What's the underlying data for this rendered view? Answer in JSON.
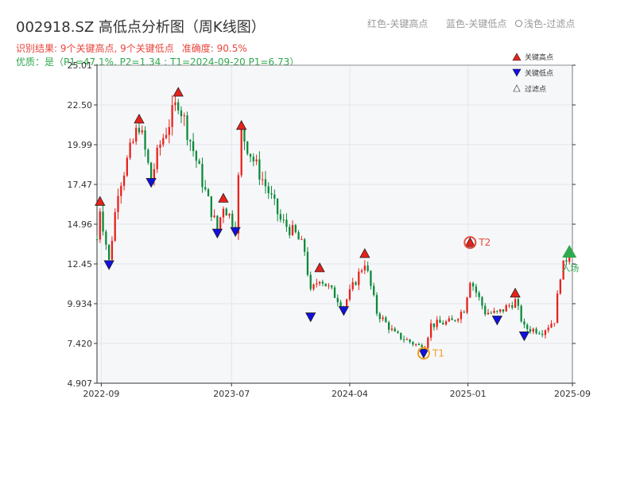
{
  "header": {
    "title": "002918.SZ 高低点分析图（周K线图）",
    "hint_red": "红色-关键高点",
    "hint_blue": "蓝色-关键低点",
    "hint_light": "浅色-过滤点",
    "result": "识别结果: 9个关键高点, 9个关键低点",
    "accuracy": "准确度: 90.5%",
    "quality": "优质：是（P1=47.1%, P2=1.34 ; T1=2024-09-20 P1=6.73）"
  },
  "chart_data": {
    "type": "candlestick",
    "y_ticks": [
      "25.01",
      "22.50",
      "19.99",
      "17.47",
      "14.96",
      "12.45",
      "9.934",
      "7.420",
      "4.907"
    ],
    "ylim": [
      4.907,
      25.01
    ],
    "x_ticks": [
      "2022-09",
      "2023-07",
      "2024-04",
      "2025-01",
      "2025-09"
    ],
    "xlim": [
      "2022-08-22",
      "2025-09-01"
    ],
    "grid": true,
    "legend": {
      "position": "top-right",
      "items": [
        "关键高点",
        "关键低点",
        "过滤点"
      ]
    },
    "colors": {
      "up": "#e8211b",
      "down": "#0a8a3a",
      "high": "#e8211b",
      "low": "#1010e0",
      "marker_T": "#f0a020",
      "marker_T2": "#e84a3c",
      "entry": "#2fa84f"
    },
    "series": [
      {
        "name": "关键高点",
        "points": [
          {
            "date": "2022-08-29",
            "value": 16.4
          },
          {
            "date": "2022-11-28",
            "value": 21.6
          },
          {
            "date": "2023-02-27",
            "value": 23.3
          },
          {
            "date": "2023-06-12",
            "value": 16.6
          },
          {
            "date": "2023-07-24",
            "value": 21.2
          },
          {
            "date": "2024-01-22",
            "value": 12.2
          },
          {
            "date": "2024-05-06",
            "value": 13.1
          },
          {
            "date": "2025-01-06",
            "value": 13.8
          },
          {
            "date": "2025-04-21",
            "value": 10.6
          }
        ]
      },
      {
        "name": "关键低点",
        "points": [
          {
            "date": "2022-09-19",
            "value": 12.4
          },
          {
            "date": "2022-12-26",
            "value": 17.6
          },
          {
            "date": "2023-05-29",
            "value": 14.4
          },
          {
            "date": "2023-07-10",
            "value": 14.5
          },
          {
            "date": "2024-01-01",
            "value": 9.1
          },
          {
            "date": "2024-03-18",
            "value": 9.5
          },
          {
            "date": "2024-09-20",
            "value": 6.8
          },
          {
            "date": "2025-03-10",
            "value": 8.9
          },
          {
            "date": "2025-05-12",
            "value": 7.9
          }
        ]
      }
    ],
    "annotations": [
      {
        "label": "T1",
        "date": "2024-09-20",
        "value": 6.8
      },
      {
        "label": "T2",
        "date": "2025-01-06",
        "value": 13.8
      },
      {
        "label": "入场",
        "date": "2025-08-25",
        "value": 13.2
      }
    ],
    "price_path": [
      [
        "2022-08-22",
        14.0
      ],
      [
        "2022-08-29",
        16.0
      ],
      [
        "2022-09-19",
        12.6
      ],
      [
        "2022-10-10",
        17.2
      ],
      [
        "2022-11-28",
        21.3
      ],
      [
        "2022-12-26",
        17.8
      ],
      [
        "2023-01-16",
        20.0
      ],
      [
        "2023-02-27",
        22.8
      ],
      [
        "2023-04-10",
        19.0
      ],
      [
        "2023-05-01",
        17.0
      ],
      [
        "2023-05-29",
        14.6
      ],
      [
        "2023-06-12",
        16.2
      ],
      [
        "2023-07-10",
        14.8
      ],
      [
        "2023-07-24",
        20.8
      ],
      [
        "2023-08-21",
        19.0
      ],
      [
        "2023-09-25",
        17.0
      ],
      [
        "2023-10-23",
        15.2
      ],
      [
        "2023-11-27",
        14.3
      ],
      [
        "2023-12-18",
        13.3
      ],
      [
        "2024-01-01",
        10.6
      ],
      [
        "2024-01-22",
        11.6
      ],
      [
        "2024-03-18",
        9.8
      ],
      [
        "2024-05-06",
        12.6
      ],
      [
        "2024-06-03",
        9.4
      ],
      [
        "2024-07-15",
        8.0
      ],
      [
        "2024-09-20",
        7.1
      ],
      [
        "2024-10-07",
        8.6
      ],
      [
        "2024-11-25",
        8.8
      ],
      [
        "2024-12-23",
        9.6
      ],
      [
        "2025-01-06",
        11.5
      ],
      [
        "2025-02-10",
        9.4
      ],
      [
        "2025-03-10",
        9.3
      ],
      [
        "2025-04-21",
        10.1
      ],
      [
        "2025-05-12",
        8.4
      ],
      [
        "2025-06-23",
        8.2
      ],
      [
        "2025-07-21",
        8.9
      ],
      [
        "2025-08-04",
        11.8
      ],
      [
        "2025-08-25",
        13.3
      ]
    ]
  }
}
